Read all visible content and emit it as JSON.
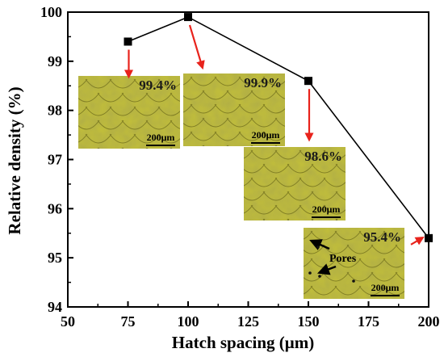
{
  "chart_data": {
    "type": "line",
    "xlabel": "Hatch spacing (μm)",
    "ylabel": "Relative density (%)",
    "xlim": [
      50,
      200
    ],
    "ylim": [
      94,
      100
    ],
    "xticks": [
      50,
      75,
      100,
      125,
      150,
      175,
      200
    ],
    "yticks": [
      94,
      95,
      96,
      97,
      98,
      99,
      100
    ],
    "grid": false,
    "marker": "square",
    "line_color": "#000000",
    "series": [
      {
        "x": [
          75,
          100,
          150,
          200
        ],
        "values": [
          99.4,
          99.9,
          98.6,
          95.4
        ]
      }
    ],
    "insets": [
      {
        "label": "99.4%",
        "scale_bar": "200μm",
        "point_x": 75
      },
      {
        "label": "99.9%",
        "scale_bar": "200μm",
        "point_x": 100
      },
      {
        "label": "98.6%",
        "scale_bar": "200μm",
        "point_x": 150
      },
      {
        "label": "95.4%",
        "scale_bar": "200μm",
        "point_x": 200,
        "annotation": "Pores"
      }
    ],
    "colors": {
      "arrow": "#e8231c",
      "micrograph_base": "#c2bf3a",
      "micrograph_line": "#6d6b1c"
    }
  }
}
